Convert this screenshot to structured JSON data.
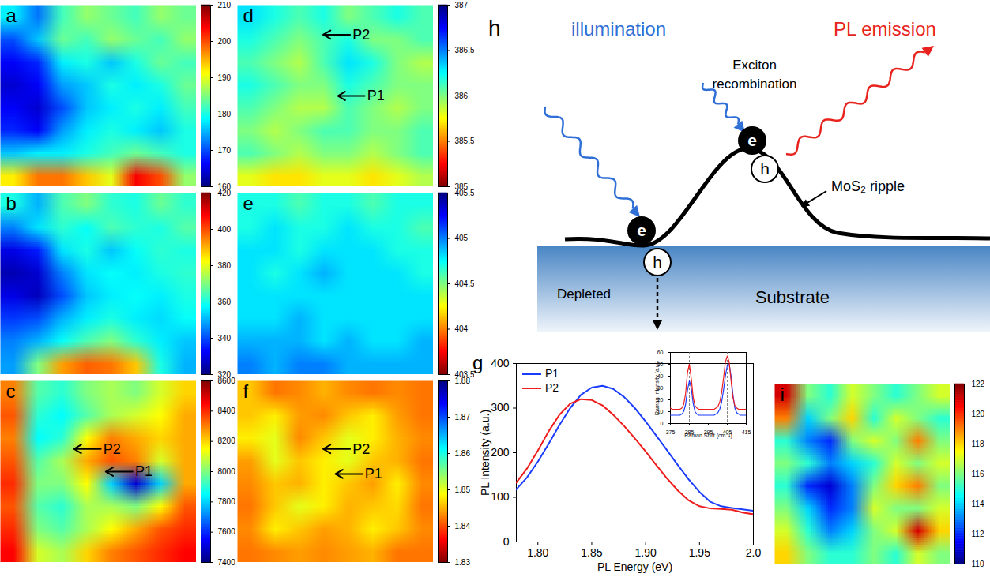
{
  "chart_data": [
    {
      "type": "heatmap",
      "title": "a",
      "color": "jet",
      "tick_labels": false,
      "cells": [
        [
          178,
          172,
          182,
          186,
          184,
          182,
          186,
          184
        ],
        [
          170,
          176,
          184,
          182,
          186,
          184,
          182,
          186
        ],
        [
          166,
          168,
          178,
          180,
          176,
          180,
          184,
          182
        ],
        [
          164,
          166,
          174,
          176,
          180,
          178,
          180,
          184
        ],
        [
          166,
          164,
          170,
          176,
          178,
          180,
          178,
          182
        ],
        [
          168,
          166,
          174,
          178,
          180,
          178,
          176,
          180
        ],
        [
          176,
          178,
          178,
          180,
          182,
          184,
          182,
          180
        ],
        [
          192,
          198,
          198,
          194,
          190,
          204,
          200,
          186
        ]
      ],
      "colorbar": {
        "range": [
          160,
          210
        ],
        "ticks": [
          160,
          170,
          180,
          190,
          200,
          210
        ]
      }
    },
    {
      "type": "heatmap",
      "title": "b",
      "color": "jet",
      "tick_labels": false,
      "cells": [
        [
          360,
          350,
          365,
          370,
          362,
          360,
          368,
          362
        ],
        [
          345,
          355,
          362,
          358,
          365,
          362,
          360,
          366
        ],
        [
          330,
          335,
          355,
          360,
          352,
          358,
          362,
          360
        ],
        [
          325,
          328,
          345,
          355,
          358,
          356,
          360,
          362
        ],
        [
          330,
          326,
          340,
          352,
          356,
          358,
          356,
          360
        ],
        [
          338,
          340,
          350,
          356,
          360,
          356,
          354,
          358
        ],
        [
          345,
          350,
          358,
          365,
          370,
          362,
          356,
          352
        ],
        [
          348,
          370,
          392,
          398,
          396,
          388,
          360,
          350
        ]
      ],
      "colorbar": {
        "range": [
          320,
          420
        ],
        "ticks": [
          320,
          340,
          360,
          380,
          400,
          420
        ]
      }
    },
    {
      "type": "heatmap",
      "title": "c",
      "color": "jet",
      "tick_labels": false,
      "cells": [
        [
          8300,
          7950,
          7900,
          8000,
          8050,
          8000,
          8100,
          8200
        ],
        [
          8350,
          7900,
          7850,
          7950,
          8050,
          8100,
          8150,
          8250
        ],
        [
          8300,
          7850,
          7900,
          8150,
          8300,
          8250,
          8200,
          8250
        ],
        [
          8350,
          7950,
          8050,
          8250,
          8350,
          8300,
          8100,
          8250
        ],
        [
          8400,
          8000,
          8000,
          8150,
          7800,
          7500,
          7800,
          8250
        ],
        [
          8350,
          7950,
          7900,
          8050,
          8050,
          8000,
          8150,
          8350
        ],
        [
          8400,
          8000,
          7950,
          8050,
          8150,
          8250,
          8350,
          8400
        ],
        [
          8450,
          8100,
          8050,
          8200,
          8300,
          8350,
          8400,
          8450
        ]
      ],
      "colorbar": {
        "range": [
          7400,
          8600
        ],
        "ticks": [
          7400,
          7600,
          7800,
          8000,
          8200,
          8400,
          8600
        ]
      },
      "annotations": [
        {
          "text": "P2",
          "x": 3.0,
          "y": 3.0
        },
        {
          "text": "P1",
          "x": 4.3,
          "y": 4.0
        }
      ]
    },
    {
      "type": "heatmap",
      "title": "d",
      "color": "jet_r",
      "tick_labels": false,
      "cells": [
        [
          386.3,
          386.2,
          386.1,
          386.2,
          386.0,
          386.1,
          386.2,
          386.1
        ],
        [
          386.2,
          386.1,
          386.0,
          386.1,
          386.2,
          386.0,
          386.0,
          386.1
        ],
        [
          386.1,
          386.0,
          385.9,
          386.1,
          386.3,
          386.2,
          386.0,
          385.9
        ],
        [
          386.2,
          386.1,
          386.0,
          386.0,
          386.2,
          386.1,
          386.0,
          386.0
        ],
        [
          386.1,
          386.0,
          385.9,
          385.9,
          386.1,
          386.0,
          385.9,
          386.0
        ],
        [
          386.0,
          385.9,
          386.0,
          386.1,
          386.1,
          386.0,
          386.0,
          386.1
        ],
        [
          386.1,
          386.0,
          385.9,
          386.0,
          386.0,
          385.9,
          386.0,
          386.1
        ],
        [
          385.8,
          385.7,
          385.7,
          385.8,
          385.8,
          385.7,
          385.8,
          385.9
        ]
      ],
      "colorbar": {
        "range": [
          385,
          387
        ],
        "ticks": [
          385,
          385.5,
          386,
          386.5,
          387
        ]
      },
      "annotations": [
        {
          "text": "P2",
          "x": 3.5,
          "y": 1.3
        },
        {
          "text": "P1",
          "x": 4.1,
          "y": 4.0
        }
      ]
    },
    {
      "type": "heatmap",
      "title": "e",
      "color": "jet_r",
      "tick_labels": false,
      "cells": [
        [
          404.7,
          404.7,
          404.6,
          404.7,
          404.7,
          404.6,
          404.7,
          404.7
        ],
        [
          404.7,
          404.8,
          404.7,
          404.7,
          404.8,
          404.7,
          404.7,
          404.6
        ],
        [
          404.8,
          404.8,
          404.7,
          404.8,
          404.8,
          404.8,
          404.7,
          404.7
        ],
        [
          404.8,
          404.7,
          404.8,
          404.9,
          404.8,
          404.8,
          404.8,
          404.7
        ],
        [
          404.8,
          404.8,
          404.8,
          404.8,
          404.8,
          404.8,
          404.8,
          404.8
        ],
        [
          404.8,
          404.8,
          404.9,
          404.8,
          404.8,
          404.8,
          404.8,
          404.8
        ],
        [
          404.9,
          404.9,
          404.9,
          404.8,
          404.9,
          404.8,
          404.8,
          404.9
        ],
        [
          405.0,
          404.9,
          405.0,
          405.0,
          404.9,
          404.9,
          404.9,
          404.9
        ]
      ],
      "colorbar": {
        "range": [
          403.5,
          405.5
        ],
        "ticks": [
          403.5,
          404,
          404.5,
          405,
          405.5
        ]
      }
    },
    {
      "type": "heatmap",
      "title": "f",
      "color": "jet_r",
      "tick_labels": false,
      "cells": [
        [
          1.846,
          1.842,
          1.843,
          1.845,
          1.843,
          1.842,
          1.843,
          1.842
        ],
        [
          1.846,
          1.848,
          1.844,
          1.843,
          1.846,
          1.848,
          1.844,
          1.842
        ],
        [
          1.848,
          1.85,
          1.843,
          1.846,
          1.85,
          1.848,
          1.845,
          1.843
        ],
        [
          1.844,
          1.85,
          1.846,
          1.848,
          1.85,
          1.846,
          1.845,
          1.842
        ],
        [
          1.843,
          1.846,
          1.845,
          1.848,
          1.846,
          1.844,
          1.848,
          1.843
        ],
        [
          1.842,
          1.846,
          1.85,
          1.848,
          1.845,
          1.846,
          1.847,
          1.842
        ],
        [
          1.843,
          1.848,
          1.846,
          1.844,
          1.845,
          1.848,
          1.846,
          1.843
        ],
        [
          1.842,
          1.843,
          1.844,
          1.843,
          1.844,
          1.845,
          1.842,
          1.842
        ]
      ],
      "colorbar": {
        "range": [
          1.83,
          1.88
        ],
        "ticks": [
          1.83,
          1.84,
          1.85,
          1.86,
          1.87,
          1.88
        ]
      },
      "annotations": [
        {
          "text": "P2",
          "x": 3.5,
          "y": 3.0
        },
        {
          "text": "P1",
          "x": 4.0,
          "y": 4.1
        }
      ]
    },
    {
      "type": "line",
      "title": "g",
      "xlabel": "PL Energy (eV)",
      "ylabel": "PL Intensity (a.u.)",
      "legend": "top-left",
      "x": [
        1.78,
        1.79,
        1.8,
        1.81,
        1.82,
        1.83,
        1.84,
        1.85,
        1.86,
        1.87,
        1.88,
        1.89,
        1.9,
        1.91,
        1.92,
        1.93,
        1.94,
        1.95,
        1.96,
        1.97,
        1.98,
        1.99,
        2.0
      ],
      "series": [
        {
          "name": "P1",
          "color": "#1a3cff",
          "values": [
            118,
            145,
            180,
            220,
            262,
            300,
            330,
            346,
            350,
            343,
            325,
            300,
            270,
            238,
            205,
            172,
            140,
            112,
            90,
            80,
            76,
            73,
            70
          ]
        },
        {
          "name": "P2",
          "color": "#ee1c1c",
          "values": [
            133,
            165,
            205,
            248,
            285,
            310,
            320,
            318,
            306,
            285,
            260,
            232,
            203,
            172,
            142,
            115,
            93,
            80,
            75,
            74,
            72,
            66,
            62
          ]
        }
      ],
      "xlim": [
        1.78,
        2.0
      ],
      "xticks": [
        {
          "value": 1.8,
          "label": "1.80"
        },
        1.85,
        {
          "value": 1.9,
          "label": "1.90"
        },
        1.95,
        {
          "value": 2.0,
          "label": "2.0"
        }
      ],
      "ylim": [
        0,
        400
      ],
      "yticks": [
        0,
        100,
        200,
        300,
        400
      ],
      "inset": {
        "type": "line",
        "xlabel": "Raman Shift (cm⁻¹)",
        "ylabel": "Raman Intensity (a.u.)",
        "x": [
          375,
          376,
          377,
          378,
          379,
          380,
          381,
          382,
          383,
          384,
          385,
          386,
          387,
          388,
          389,
          390,
          391,
          392,
          393,
          394,
          395,
          396,
          397,
          398,
          399,
          400,
          401,
          402,
          403,
          404,
          405,
          406,
          407,
          408,
          409,
          410,
          411,
          412,
          413,
          414,
          415
        ],
        "series": [
          {
            "name": "P1",
            "color": "#1a3cff",
            "values": [
              7,
              7,
              7,
              7,
              7,
              7,
              8,
              10,
              16,
              28,
              36,
              30,
              17,
              10,
              8,
              7,
              7,
              7,
              7,
              7,
              7,
              7,
              7,
              7,
              8,
              9,
              12,
              18,
              28,
              40,
              49,
              50,
              40,
              24,
              13,
              9,
              8,
              7,
              7,
              7,
              7
            ]
          },
          {
            "name": "P2",
            "color": "#ee1c1c",
            "values": [
              13,
              12,
              12,
              12,
              12,
              12,
              13,
              16,
              25,
              43,
              50,
              38,
              22,
              15,
              13,
              12,
              12,
              12,
              12,
              12,
              12,
              12,
              12,
              12,
              13,
              14,
              18,
              26,
              38,
              52,
              57,
              52,
              36,
              22,
              15,
              13,
              12,
              12,
              12,
              12,
              12
            ]
          }
        ],
        "xlim": [
          375,
          415
        ],
        "xticks": [
          375,
          385,
          395,
          405,
          415
        ],
        "ylim": [
          0,
          60
        ],
        "yticks": [
          0,
          10,
          20,
          30,
          40,
          50,
          60
        ],
        "vlines": {
          "values": [
            385,
            405
          ],
          "line_style": "dashed"
        }
      }
    },
    {
      "type": "heatmap",
      "title": "i",
      "color": "jet",
      "tick_labels": false,
      "cells": [
        [
          121,
          116,
          115,
          117,
          116,
          115,
          116,
          117
        ],
        [
          119,
          114,
          116,
          118,
          115,
          117,
          116,
          115
        ],
        [
          115,
          113,
          112,
          116,
          117,
          116,
          119,
          116
        ],
        [
          116,
          115,
          113,
          114,
          115,
          117,
          116,
          117
        ],
        [
          115,
          112,
          111,
          113,
          116,
          118,
          119,
          116
        ],
        [
          116,
          114,
          112,
          113,
          117,
          116,
          116,
          117
        ],
        [
          117,
          115,
          113,
          114,
          116,
          117,
          121,
          118
        ],
        [
          118,
          116,
          115,
          115,
          116,
          115,
          117,
          116
        ]
      ],
      "colorbar": {
        "range": [
          110,
          122
        ],
        "ticks": [
          110,
          112,
          114,
          116,
          118,
          120,
          122
        ]
      }
    }
  ],
  "diagram": {
    "panel": "h",
    "illumination": "illumination",
    "emission": "PL emission",
    "recombination": "Exciton recombination",
    "ripple": "MoS₂ ripple",
    "depleted": "Depleted",
    "substrate": "Substrate",
    "electron": "e",
    "hole": "h"
  }
}
